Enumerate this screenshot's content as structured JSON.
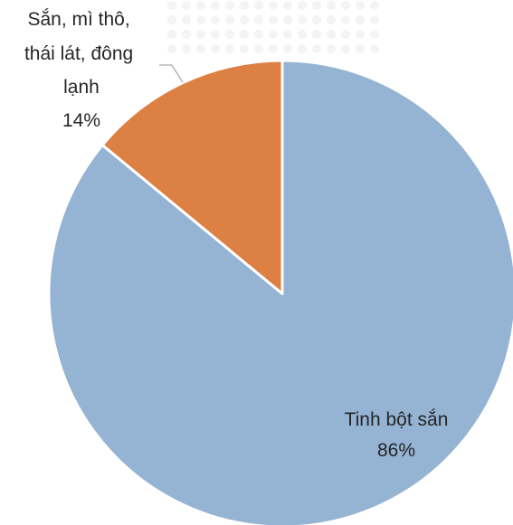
{
  "chart_data": {
    "type": "pie",
    "title": "",
    "legend": "none",
    "slices": [
      {
        "label": "Tinh bột sắn",
        "label_lines": [
          "Tinh bột sắn"
        ],
        "value": 86,
        "pct_label": "86%",
        "color": "#95B3D3"
      },
      {
        "label": "Sắn, mì thô, thái lát, đông lạnh",
        "label_lines": [
          "Sắn, mì thô,",
          "thái lát, đông",
          "lạnh"
        ],
        "value": 14,
        "pct_label": "14%",
        "color": "#DC8044"
      }
    ]
  }
}
